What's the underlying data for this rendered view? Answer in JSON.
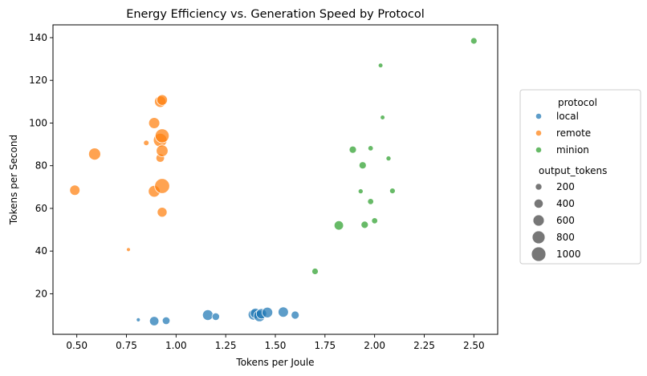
{
  "chart_data": {
    "type": "scatter",
    "title": "Energy Efficiency vs. Generation Speed by Protocol",
    "xlabel": "Tokens per Joule",
    "ylabel": "Tokens per Second",
    "xlim": [
      0.38,
      2.62
    ],
    "ylim": [
      1,
      146
    ],
    "xticks": [
      "0.50",
      "0.75",
      "1.00",
      "1.25",
      "1.50",
      "1.75",
      "2.00",
      "2.25",
      "2.50"
    ],
    "xtick_values": [
      0.5,
      0.75,
      1.0,
      1.25,
      1.5,
      1.75,
      2.0,
      2.25,
      2.5
    ],
    "yticks": [
      "20",
      "40",
      "60",
      "80",
      "100",
      "120",
      "140"
    ],
    "ytick_values": [
      20,
      40,
      60,
      80,
      100,
      120,
      140
    ],
    "grid": false,
    "legend_placement": "outside-right",
    "hue_title": "protocol",
    "size_title": "output_tokens",
    "size_legend": [
      200,
      400,
      600,
      800,
      1000
    ],
    "series": [
      {
        "name": "local",
        "color": "#1f77b4",
        "points": [
          {
            "x": 0.81,
            "y": 7.8,
            "size": 80
          },
          {
            "x": 0.89,
            "y": 7.2,
            "size": 430
          },
          {
            "x": 0.95,
            "y": 7.4,
            "size": 300
          },
          {
            "x": 1.16,
            "y": 10.0,
            "size": 560
          },
          {
            "x": 1.2,
            "y": 9.3,
            "size": 280
          },
          {
            "x": 1.39,
            "y": 10.2,
            "size": 560
          },
          {
            "x": 1.4,
            "y": 10.8,
            "size": 520
          },
          {
            "x": 1.42,
            "y": 9.6,
            "size": 640
          },
          {
            "x": 1.43,
            "y": 10.6,
            "size": 520
          },
          {
            "x": 1.46,
            "y": 11.2,
            "size": 560
          },
          {
            "x": 1.54,
            "y": 11.4,
            "size": 520
          },
          {
            "x": 1.6,
            "y": 10.0,
            "size": 320
          }
        ]
      },
      {
        "name": "remote",
        "color": "#ff7f0e",
        "points": [
          {
            "x": 0.49,
            "y": 68.5,
            "size": 520
          },
          {
            "x": 0.59,
            "y": 85.5,
            "size": 720
          },
          {
            "x": 0.76,
            "y": 40.7,
            "size": 80
          },
          {
            "x": 0.85,
            "y": 90.7,
            "size": 150
          },
          {
            "x": 0.89,
            "y": 68.0,
            "size": 680
          },
          {
            "x": 0.89,
            "y": 100.0,
            "size": 600
          },
          {
            "x": 0.92,
            "y": 92.0,
            "size": 920
          },
          {
            "x": 0.92,
            "y": 83.6,
            "size": 360
          },
          {
            "x": 0.92,
            "y": 110.0,
            "size": 640
          },
          {
            "x": 0.93,
            "y": 110.8,
            "size": 560
          },
          {
            "x": 0.93,
            "y": 94.0,
            "size": 960
          },
          {
            "x": 0.93,
            "y": 87.0,
            "size": 680
          },
          {
            "x": 0.93,
            "y": 70.5,
            "size": 1100
          },
          {
            "x": 0.93,
            "y": 58.2,
            "size": 480
          }
        ]
      },
      {
        "name": "minion",
        "color": "#2ca02c",
        "points": [
          {
            "x": 1.7,
            "y": 30.5,
            "size": 200
          },
          {
            "x": 1.82,
            "y": 52.0,
            "size": 430
          },
          {
            "x": 1.89,
            "y": 87.5,
            "size": 260
          },
          {
            "x": 1.93,
            "y": 68.0,
            "size": 120
          },
          {
            "x": 1.94,
            "y": 80.2,
            "size": 260
          },
          {
            "x": 1.95,
            "y": 52.3,
            "size": 260
          },
          {
            "x": 1.98,
            "y": 88.2,
            "size": 140
          },
          {
            "x": 1.98,
            "y": 63.2,
            "size": 180
          },
          {
            "x": 2.0,
            "y": 54.2,
            "size": 180
          },
          {
            "x": 2.03,
            "y": 127.0,
            "size": 110
          },
          {
            "x": 2.04,
            "y": 102.6,
            "size": 110
          },
          {
            "x": 2.07,
            "y": 83.4,
            "size": 120
          },
          {
            "x": 2.09,
            "y": 68.2,
            "size": 160
          },
          {
            "x": 2.5,
            "y": 138.5,
            "size": 200
          }
        ]
      }
    ]
  }
}
